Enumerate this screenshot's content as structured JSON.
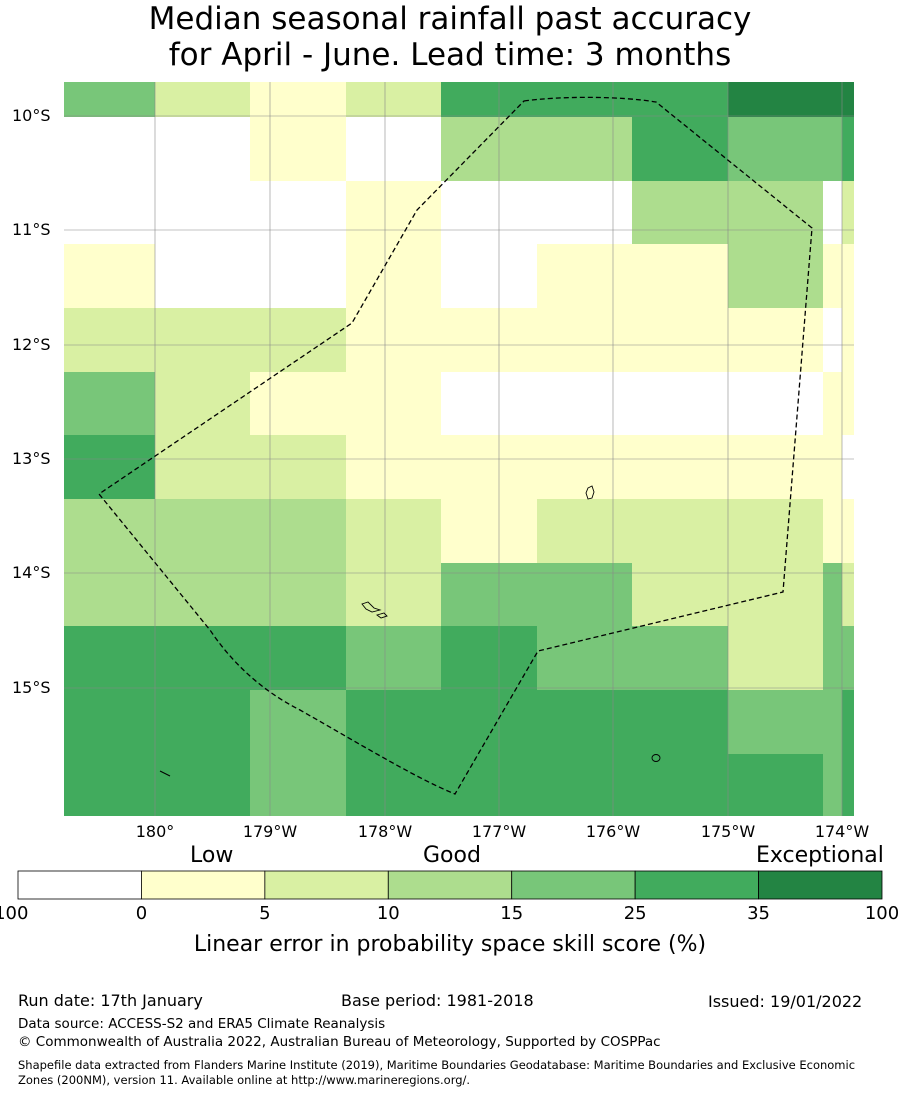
{
  "title": {
    "line1": "Median seasonal rainfall past accuracy",
    "line2": "for April - June. Lead time: 3 months"
  },
  "map": {
    "lat_labels": [
      "10°S",
      "11°S",
      "12°S",
      "13°S",
      "14°S",
      "15°S"
    ],
    "lon_labels": [
      "180°",
      "179°W",
      "178°W",
      "177°W",
      "176°W",
      "175°W",
      "174°W"
    ],
    "grid_cells": [
      [
        15,
        5,
        0,
        5,
        25,
        25,
        25,
        35,
        35,
        100
      ],
      [
        -1,
        -1,
        0,
        -1,
        10,
        10,
        25,
        15,
        15,
        25
      ],
      [
        -1,
        -1,
        -1,
        0,
        -1,
        -1,
        10,
        10,
        -1,
        5
      ],
      [
        0,
        -1,
        -1,
        0,
        -1,
        0,
        0,
        10,
        0,
        0
      ],
      [
        5,
        5,
        5,
        0,
        0,
        0,
        0,
        0,
        -1,
        0
      ],
      [
        15,
        5,
        0,
        0,
        -1,
        -1,
        -1,
        -1,
        0,
        0
      ],
      [
        25,
        5,
        5,
        0,
        0,
        0,
        0,
        0,
        0,
        -1
      ],
      [
        10,
        10,
        10,
        5,
        0,
        5,
        5,
        5,
        0,
        0
      ],
      [
        10,
        10,
        10,
        5,
        15,
        15,
        5,
        5,
        15,
        5
      ],
      [
        25,
        25,
        25,
        15,
        25,
        15,
        15,
        5,
        15,
        15
      ],
      [
        25,
        25,
        15,
        25,
        25,
        25,
        25,
        15,
        15,
        25
      ],
      [
        25,
        25,
        15,
        25,
        25,
        25,
        25,
        25,
        15,
        25
      ]
    ]
  },
  "colorbar": {
    "category_labels": [
      "Low",
      "Good",
      "Exceptional"
    ],
    "ticks": [
      "-100",
      "0",
      "5",
      "10",
      "15",
      "25",
      "35",
      "100"
    ],
    "colors": [
      "#ffffff",
      "#ffffcc",
      "#d9f0a3",
      "#addd8e",
      "#78c679",
      "#41ab5d",
      "#238443"
    ],
    "title": "Linear error in probability space skill score (%)"
  },
  "footer": {
    "run_date": "Run date: 17th January",
    "base_period": "Base period: 1981-2018",
    "issued": "Issued: 19/01/2022",
    "data_source": "Data source: ACCESS-S2 and ERA5 Climate Reanalysis",
    "copyright": "© Commonwealth of Australia 2022, Australian Bureau of Meteorology, Supported by COSPPac",
    "shapefile_line1": "Shapefile data extracted from Flanders Marine Institute (2019), Maritime Boundaries Geodatabase: Maritime Boundaries and Exclusive Economic",
    "shapefile_line2": "Zones (200NM), version 11. Available online at http://www.marineregions.org/."
  }
}
